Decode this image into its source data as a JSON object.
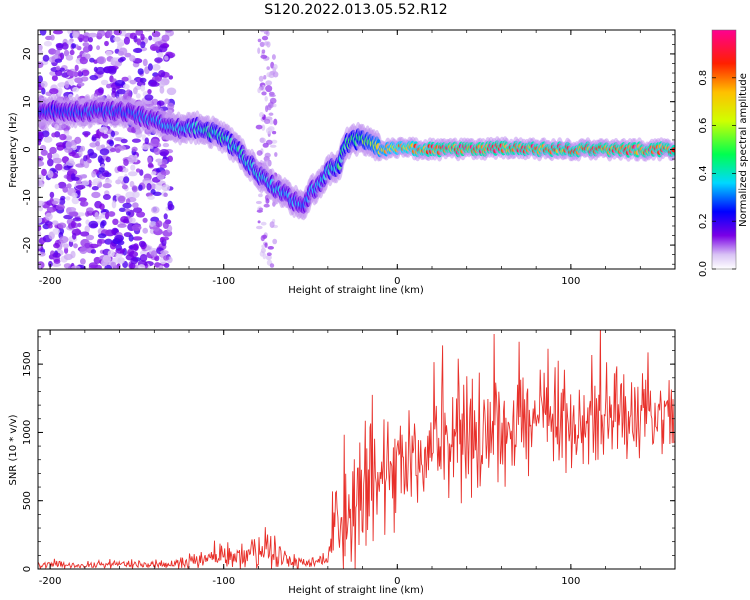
{
  "title": "S120.2022.013.05.52.R12",
  "chart_data": [
    {
      "type": "heatmap",
      "xlabel": "Height of straight line (km)",
      "ylabel": "Frequency (Hz)",
      "xlim": [
        -207,
        160
      ],
      "ylim": [
        -25,
        25
      ],
      "x_ticks": [
        -200,
        -100,
        0,
        100
      ],
      "y_ticks": [
        -20,
        -10,
        0,
        10,
        20
      ],
      "colorbar": {
        "label": "Normalized spectral amplitude",
        "range": [
          0,
          1
        ],
        "ticks": [
          "0.0",
          "0.2",
          "0.4",
          "0.6",
          "0.8"
        ],
        "tick_values": [
          0,
          0.2,
          0.4,
          0.6,
          0.8
        ]
      },
      "ridge": [
        {
          "x": -200,
          "y": 8,
          "a": 0.28
        },
        {
          "x": -185,
          "y": 8,
          "a": 0.3
        },
        {
          "x": -170,
          "y": 8,
          "a": 0.32
        },
        {
          "x": -155,
          "y": 8,
          "a": 0.3
        },
        {
          "x": -140,
          "y": 6,
          "a": 0.34
        },
        {
          "x": -125,
          "y": 4.5,
          "a": 0.38
        },
        {
          "x": -115,
          "y": 4.5,
          "a": 0.42
        },
        {
          "x": -105,
          "y": 3.5,
          "a": 0.46
        },
        {
          "x": -95,
          "y": 1,
          "a": 0.44
        },
        {
          "x": -85,
          "y": -3,
          "a": 0.42
        },
        {
          "x": -78,
          "y": -6,
          "a": 0.4
        },
        {
          "x": -70,
          "y": -8,
          "a": 0.38
        },
        {
          "x": -62,
          "y": -10,
          "a": 0.36
        },
        {
          "x": -55,
          "y": -12,
          "a": 0.34
        },
        {
          "x": -50,
          "y": -9,
          "a": 0.36
        },
        {
          "x": -45,
          "y": -7,
          "a": 0.38
        },
        {
          "x": -38,
          "y": -4,
          "a": 0.44
        },
        {
          "x": -33,
          "y": -3,
          "a": 0.48
        },
        {
          "x": -30,
          "y": 1,
          "a": 0.5
        },
        {
          "x": -25,
          "y": 2,
          "a": 0.52
        },
        {
          "x": -20,
          "y": 2.5,
          "a": 0.56
        },
        {
          "x": -15,
          "y": 1.5,
          "a": 0.62
        },
        {
          "x": -10,
          "y": 0,
          "a": 0.72
        },
        {
          "x": 0,
          "y": 0.3,
          "a": 0.8
        },
        {
          "x": 20,
          "y": 0,
          "a": 0.9
        },
        {
          "x": 40,
          "y": 0,
          "a": 0.95
        },
        {
          "x": 60,
          "y": 0.3,
          "a": 0.92
        },
        {
          "x": 80,
          "y": 0,
          "a": 0.9
        },
        {
          "x": 100,
          "y": 0,
          "a": 0.9
        },
        {
          "x": 120,
          "y": 0,
          "a": 0.92
        },
        {
          "x": 140,
          "y": 0,
          "a": 0.92
        },
        {
          "x": 160,
          "y": 0,
          "a": 0.9
        }
      ],
      "noise_region": {
        "x_from": -207,
        "x_to": -130,
        "y_from": -25,
        "y_to": 25,
        "amplitude": 0.15
      }
    },
    {
      "type": "line",
      "xlabel": "Height of straight line (km)",
      "ylabel": "SNR (10 * v/v)",
      "xlim": [
        -207,
        160
      ],
      "ylim": [
        0,
        1750
      ],
      "x_ticks": [
        -200,
        -100,
        0,
        100
      ],
      "y_ticks": [
        0,
        500,
        1000,
        1500
      ],
      "color": "#e8302a",
      "envelope": [
        {
          "x": -207,
          "mean": 30,
          "spread": 25
        },
        {
          "x": -130,
          "mean": 30,
          "spread": 25
        },
        {
          "x": -120,
          "mean": 50,
          "spread": 40
        },
        {
          "x": -105,
          "mean": 90,
          "spread": 60
        },
        {
          "x": -95,
          "mean": 120,
          "spread": 90
        },
        {
          "x": -85,
          "mean": 110,
          "spread": 80
        },
        {
          "x": -75,
          "mean": 170,
          "spread": 150
        },
        {
          "x": -65,
          "mean": 70,
          "spread": 60
        },
        {
          "x": -50,
          "mean": 40,
          "spread": 30
        },
        {
          "x": -40,
          "mean": 80,
          "spread": 60
        },
        {
          "x": -35,
          "mean": 300,
          "spread": 300
        },
        {
          "x": -25,
          "mean": 450,
          "spread": 400
        },
        {
          "x": -15,
          "mean": 550,
          "spread": 420
        },
        {
          "x": -5,
          "mean": 650,
          "spread": 300
        },
        {
          "x": 10,
          "mean": 800,
          "spread": 280
        },
        {
          "x": 30,
          "mean": 950,
          "spread": 350
        },
        {
          "x": 50,
          "mean": 1050,
          "spread": 400
        },
        {
          "x": 70,
          "mean": 1080,
          "spread": 350
        },
        {
          "x": 100,
          "mean": 1080,
          "spread": 300
        },
        {
          "x": 130,
          "mean": 1080,
          "spread": 280
        },
        {
          "x": 160,
          "mean": 1080,
          "spread": 250
        }
      ]
    }
  ]
}
